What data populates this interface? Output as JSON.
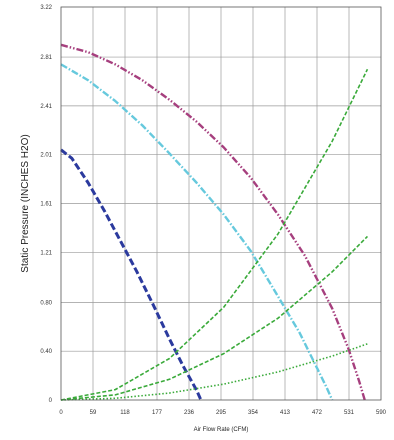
{
  "chart_data": {
    "type": "line",
    "xlabel": "Air Flow Rate (CFM)",
    "ylabel": "Static Pressure (INCHES H2O)",
    "xlim": [
      0,
      590
    ],
    "ylim": [
      0,
      3.22
    ],
    "x_ticks": [
      "0",
      "59",
      "118",
      "177",
      "236",
      "295",
      "354",
      "413",
      "472",
      "531",
      "590"
    ],
    "y_ticks": [
      "0",
      "0.40",
      "0.80",
      "1.21",
      "1.61",
      "2.01",
      "2.41",
      "2.81",
      "3.22"
    ],
    "grid": true,
    "legend": "none",
    "series": [
      {
        "style": "fan-curve",
        "color": "#2b3a9e",
        "dash": "dash",
        "x": [
          0,
          20,
          50,
          80,
          110,
          140,
          170,
          200,
          225,
          250,
          258
        ],
        "y": [
          2.05,
          1.98,
          1.78,
          1.55,
          1.3,
          1.05,
          0.78,
          0.5,
          0.28,
          0.08,
          0
        ]
      },
      {
        "style": "fan-curve",
        "color": "#66c9dd",
        "dash": "dashdot",
        "x": [
          0,
          50,
          100,
          150,
          200,
          250,
          300,
          350,
          400,
          440,
          470,
          490,
          500
        ],
        "y": [
          2.75,
          2.62,
          2.45,
          2.25,
          2.02,
          1.78,
          1.52,
          1.22,
          0.85,
          0.55,
          0.28,
          0.1,
          0
        ]
      },
      {
        "style": "fan-curve",
        "color": "#a63f7e",
        "dash": "dashdotdot",
        "x": [
          0,
          50,
          100,
          150,
          200,
          250,
          300,
          350,
          400,
          450,
          500,
          530,
          550,
          560
        ],
        "y": [
          2.91,
          2.85,
          2.75,
          2.62,
          2.46,
          2.28,
          2.07,
          1.82,
          1.52,
          1.18,
          0.75,
          0.42,
          0.15,
          0
        ]
      },
      {
        "style": "system-curve",
        "color": "#3aaa3a",
        "dash": "dash",
        "x": [
          0,
          100,
          200,
          300,
          400,
          500,
          565
        ],
        "y": [
          0,
          0.085,
          0.34,
          0.76,
          1.36,
          2.12,
          2.71
        ]
      },
      {
        "style": "system-curve",
        "color": "#3aaa3a",
        "dash": "dash",
        "x": [
          0,
          100,
          200,
          300,
          400,
          500,
          565
        ],
        "y": [
          0,
          0.042,
          0.17,
          0.38,
          0.67,
          1.05,
          1.34
        ]
      },
      {
        "style": "system-curve",
        "color": "#3aaa3a",
        "dash": "dot",
        "x": [
          0,
          100,
          200,
          300,
          400,
          500,
          565
        ],
        "y": [
          0,
          0.014,
          0.057,
          0.13,
          0.23,
          0.36,
          0.46
        ]
      }
    ]
  }
}
